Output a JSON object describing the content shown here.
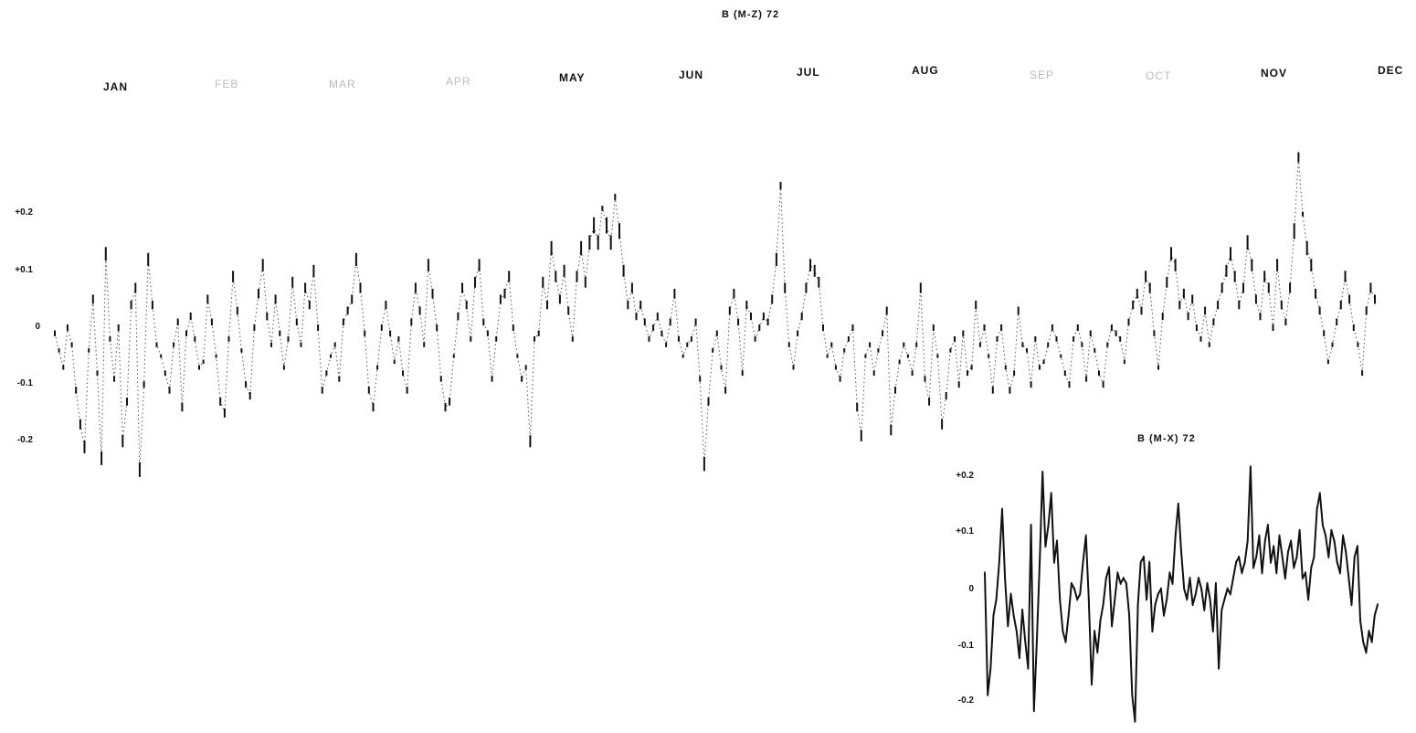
{
  "chart_data": [
    {
      "type": "line",
      "title": "B (M-Z) 72",
      "months": [
        "JAN",
        "FEB",
        "MAR",
        "APR",
        "MAY",
        "JUN",
        "JUL",
        "AUG",
        "SEP",
        "OCT",
        "NOV",
        "DEC"
      ],
      "yticks": [
        "+0.2",
        "+0.1",
        "0",
        "-0.1",
        "-0.2"
      ],
      "ylim": [
        -0.25,
        0.35
      ],
      "series": [
        {
          "values": [
            0.04,
            0.01,
            -0.02,
            0.05,
            0.02,
            -0.06,
            -0.12,
            -0.16,
            0.01,
            0.1,
            -0.03,
            -0.18,
            0.18,
            0.03,
            -0.04,
            0.05,
            -0.15,
            -0.08,
            0.09,
            0.12,
            -0.2,
            -0.05,
            0.17,
            0.09,
            0.02,
            0.0,
            -0.03,
            -0.06,
            0.02,
            0.06,
            -0.09,
            0.04,
            0.07,
            0.03,
            -0.02,
            -0.01,
            0.1,
            0.06,
            0.0,
            -0.08,
            -0.1,
            0.03,
            0.14,
            0.08,
            0.01,
            -0.05,
            -0.07,
            0.05,
            0.11,
            0.16,
            0.07,
            0.02,
            0.1,
            0.04,
            -0.02,
            0.03,
            0.13,
            0.06,
            0.02,
            0.12,
            0.09,
            0.15,
            0.05,
            -0.06,
            -0.03,
            0.0,
            0.02,
            -0.04,
            0.06,
            0.08,
            0.1,
            0.17,
            0.12,
            0.04,
            -0.06,
            -0.09,
            -0.02,
            0.05,
            0.09,
            0.04,
            -0.01,
            0.03,
            -0.03,
            -0.06,
            0.06,
            0.12,
            0.08,
            0.02,
            0.16,
            0.11,
            0.05,
            -0.04,
            -0.09,
            -0.08,
            0.0,
            0.07,
            0.12,
            0.09,
            0.03,
            0.13,
            0.16,
            0.06,
            0.04,
            -0.04,
            0.03,
            0.1,
            0.11,
            0.14,
            0.05,
            0.0,
            -0.04,
            -0.02,
            -0.15,
            0.03,
            0.04,
            0.13,
            0.09,
            0.19,
            0.14,
            0.1,
            0.15,
            0.08,
            0.03,
            0.14,
            0.19,
            0.13,
            0.2,
            0.23,
            0.2,
            0.26,
            0.23,
            0.2,
            0.28,
            0.22,
            0.15,
            0.09,
            0.12,
            0.07,
            0.09,
            0.06,
            0.03,
            0.05,
            0.07,
            0.04,
            0.02,
            0.06,
            0.11,
            0.03,
            0.0,
            0.02,
            0.03,
            0.06,
            -0.04,
            -0.19,
            -0.08,
            0.01,
            0.04,
            -0.02,
            -0.06,
            0.08,
            0.11,
            0.06,
            -0.03,
            0.09,
            0.07,
            0.03,
            0.05,
            0.07,
            0.06,
            0.1,
            0.17,
            0.3,
            0.12,
            0.02,
            -0.02,
            0.04,
            0.07,
            0.12,
            0.16,
            0.15,
            0.13,
            0.05,
            0.0,
            0.02,
            -0.02,
            -0.04,
            0.01,
            0.03,
            0.05,
            -0.09,
            -0.14,
            0.0,
            0.02,
            -0.03,
            0.01,
            0.04,
            0.08,
            -0.13,
            -0.06,
            -0.01,
            0.02,
            0.0,
            -0.03,
            0.02,
            0.12,
            -0.04,
            -0.08,
            0.05,
            0.0,
            -0.12,
            -0.07,
            0.01,
            0.03,
            -0.05,
            0.04,
            -0.03,
            -0.02,
            0.09,
            0.02,
            0.05,
            0.0,
            -0.06,
            0.03,
            0.05,
            -0.02,
            -0.06,
            -0.03,
            0.08,
            0.02,
            0.01,
            -0.05,
            0.03,
            -0.02,
            -0.01,
            0.02,
            0.05,
            0.03,
            0.0,
            -0.03,
            -0.05,
            0.03,
            0.05,
            0.02,
            -0.04,
            0.04,
            0.01,
            -0.03,
            -0.05,
            0.02,
            0.05,
            0.04,
            0.03,
            -0.01,
            0.06,
            0.09,
            0.11,
            0.08,
            0.14,
            0.12,
            0.04,
            -0.02,
            0.07,
            0.13,
            0.18,
            0.16,
            0.09,
            0.11,
            0.07,
            0.1,
            0.05,
            0.03,
            0.08,
            0.02,
            0.06,
            0.09,
            0.12,
            0.15,
            0.18,
            0.14,
            0.09,
            0.12,
            0.2,
            0.16,
            0.1,
            0.07,
            0.14,
            0.12,
            0.05,
            0.16,
            0.09,
            0.06,
            0.12,
            0.22,
            0.35,
            0.25,
            0.19,
            0.16,
            0.11,
            0.08,
            0.04,
            -0.01,
            0.02,
            0.06,
            0.09,
            0.14,
            0.1,
            0.05,
            0.02,
            -0.03,
            0.08,
            0.12,
            0.1
          ]
        }
      ]
    },
    {
      "type": "line",
      "title": "B (M-X) 72",
      "yticks": [
        "+0.2",
        "+0.1",
        "0",
        "-0.1",
        "-0.2"
      ],
      "ylim": [
        -0.26,
        0.24
      ],
      "series": [
        {
          "values": [
            0.03,
            -0.2,
            -0.15,
            -0.05,
            -0.02,
            0.05,
            0.15,
            0.02,
            -0.07,
            -0.01,
            -0.05,
            -0.08,
            -0.13,
            -0.04,
            -0.1,
            -0.15,
            0.12,
            -0.23,
            -0.1,
            0.05,
            0.22,
            0.08,
            0.12,
            0.18,
            0.05,
            0.09,
            -0.02,
            -0.08,
            -0.1,
            -0.05,
            0.01,
            0.0,
            -0.02,
            -0.01,
            0.05,
            0.1,
            -0.02,
            -0.18,
            -0.08,
            -0.12,
            -0.06,
            -0.03,
            0.02,
            0.04,
            -0.07,
            -0.02,
            0.03,
            0.01,
            0.02,
            0.01,
            -0.05,
            -0.2,
            -0.25,
            -0.03,
            0.05,
            0.06,
            -0.02,
            0.05,
            -0.08,
            -0.03,
            -0.01,
            0.0,
            -0.05,
            -0.02,
            0.03,
            0.01,
            0.1,
            0.16,
            0.07,
            0.0,
            -0.02,
            0.02,
            -0.03,
            -0.01,
            0.02,
            0.0,
            -0.04,
            0.01,
            -0.02,
            -0.08,
            0.01,
            -0.15,
            -0.04,
            -0.02,
            0.0,
            -0.01,
            0.02,
            0.05,
            0.06,
            0.03,
            0.05,
            0.09,
            0.23,
            0.04,
            0.06,
            0.1,
            0.03,
            0.09,
            0.12,
            0.05,
            0.08,
            0.03,
            0.1,
            0.06,
            0.02,
            0.07,
            0.09,
            0.04,
            0.06,
            0.11,
            0.02,
            0.03,
            -0.02,
            0.04,
            0.06,
            0.15,
            0.18,
            0.12,
            0.1,
            0.06,
            0.11,
            0.09,
            0.05,
            0.03,
            0.1,
            0.07,
            0.02,
            -0.03,
            0.06,
            0.08,
            -0.06,
            -0.1,
            -0.12,
            -0.08,
            -0.1,
            -0.05,
            -0.03
          ]
        }
      ]
    }
  ]
}
